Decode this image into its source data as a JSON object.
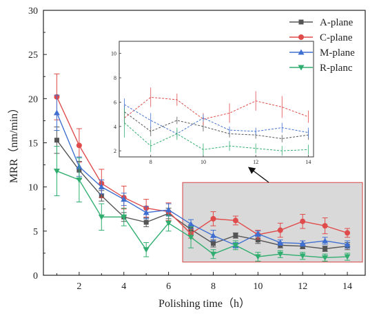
{
  "chart_data": {
    "type": "line",
    "xlabel": "Polishing time（h）",
    "ylabel": "MRR（nm/min）",
    "xlim": [
      0.4,
      14.8
    ],
    "ylim": [
      0,
      30
    ],
    "x_ticks": [
      2,
      4,
      6,
      8,
      10,
      12,
      14
    ],
    "y_ticks": [
      0,
      5,
      10,
      15,
      20,
      25,
      30
    ],
    "legend_position": "top-right",
    "grid": false,
    "x": [
      1,
      2,
      3,
      4,
      5,
      6,
      7,
      8,
      9,
      10,
      11,
      12,
      13,
      14
    ],
    "series": [
      {
        "name": "A-plane",
        "color": "#555555",
        "marker": "square",
        "values": [
          15.3,
          11.9,
          9.0,
          6.6,
          6.0,
          7.0,
          5.2,
          3.6,
          4.5,
          4.0,
          3.4,
          3.3,
          3.0,
          3.3
        ],
        "errors": [
          1.5,
          1.0,
          0.6,
          0.5,
          0.5,
          0.6,
          0.5,
          0.4,
          0.3,
          0.4,
          0.3,
          0.3,
          0.3,
          0.4
        ]
      },
      {
        "name": "C-plane",
        "color": "#e04b4b",
        "marker": "circle",
        "values": [
          20.2,
          14.7,
          10.4,
          8.8,
          7.6,
          7.2,
          4.7,
          6.4,
          6.2,
          4.6,
          5.1,
          6.1,
          5.6,
          4.8
        ],
        "errors": [
          2.6,
          1.9,
          1.6,
          1.3,
          1.0,
          1.0,
          0.5,
          0.8,
          0.5,
          0.5,
          0.8,
          0.8,
          0.9,
          0.5
        ]
      },
      {
        "name": "M-plane",
        "color": "#3f6fd1",
        "marker": "triangle-up",
        "values": [
          18.4,
          12.3,
          10.0,
          8.6,
          7.1,
          7.4,
          5.8,
          4.5,
          3.4,
          4.7,
          3.7,
          3.6,
          3.9,
          3.5
        ],
        "errors": [
          2.0,
          1.1,
          0.8,
          0.7,
          0.7,
          0.7,
          0.5,
          0.6,
          0.3,
          0.3,
          0.3,
          0.3,
          0.4,
          0.4
        ]
      },
      {
        "name": "R-planc",
        "color": "#2fae6f",
        "marker": "triangle-down",
        "values": [
          11.8,
          10.8,
          6.6,
          6.6,
          2.9,
          5.9,
          4.3,
          2.4,
          3.4,
          2.1,
          2.4,
          2.2,
          2.0,
          2.1
        ],
        "errors": [
          2.8,
          2.5,
          1.5,
          1.0,
          0.8,
          0.9,
          1.2,
          0.5,
          0.5,
          0.5,
          0.4,
          0.4,
          0.4,
          0.4
        ]
      }
    ],
    "highlight_region": {
      "x_range": [
        7,
        14
      ],
      "y_range": [
        1.5,
        10.5
      ],
      "fill": "#d9d9d9",
      "stroke": "#d95c5c"
    },
    "inset": {
      "xlim": [
        6.8,
        14.2
      ],
      "ylim": [
        1.5,
        11
      ],
      "x_ticks": [
        8,
        10,
        12,
        14
      ],
      "y_ticks": [
        2,
        4,
        6,
        8,
        10
      ],
      "x_from": 7,
      "style": "dashed"
    }
  }
}
